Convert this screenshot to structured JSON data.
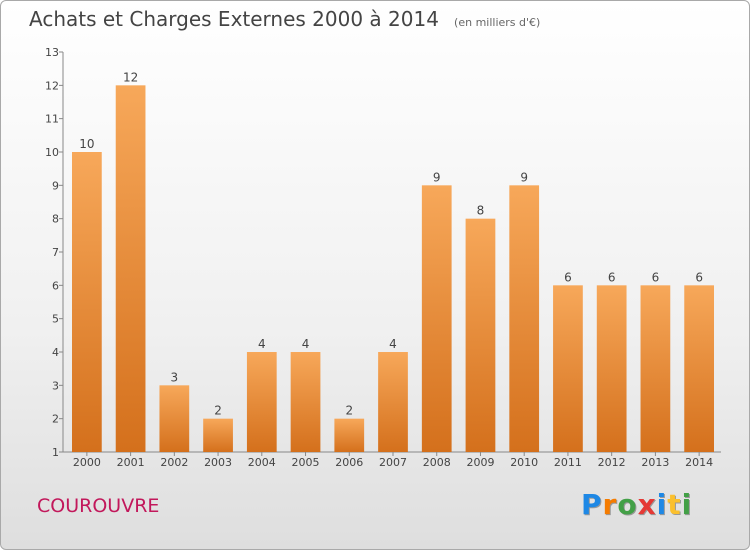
{
  "header": {
    "title": "Achats et Charges Externes 2000 à 2014",
    "subtitle": "(en milliers d'€)"
  },
  "footer": {
    "commune": "COUROUVRE",
    "logo": {
      "letters": [
        "P",
        "r",
        "o",
        "x",
        "i",
        "t",
        "i"
      ],
      "colors": [
        "#1e88e5",
        "#f57c00",
        "#43a047",
        "#e53935",
        "#1e88e5",
        "#fbc02d",
        "#43a047"
      ]
    }
  },
  "chart_data": {
    "type": "bar",
    "categories": [
      "2000",
      "2001",
      "2002",
      "2003",
      "2004",
      "2005",
      "2006",
      "2007",
      "2008",
      "2009",
      "2010",
      "2011",
      "2012",
      "2013",
      "2014"
    ],
    "values": [
      10,
      12,
      3,
      2,
      4,
      4,
      2,
      4,
      9,
      8,
      9,
      6,
      6,
      6,
      6
    ],
    "title": "Achats et Charges Externes 2000 à 2014",
    "xlabel": "",
    "ylabel": "",
    "ylim": [
      1,
      13
    ],
    "yticks": [
      1,
      2,
      3,
      4,
      5,
      6,
      7,
      8,
      9,
      10,
      11,
      12,
      13
    ],
    "grid": false,
    "bar_color_top": "#f7a85a",
    "bar_color_bottom": "#d4701c"
  }
}
